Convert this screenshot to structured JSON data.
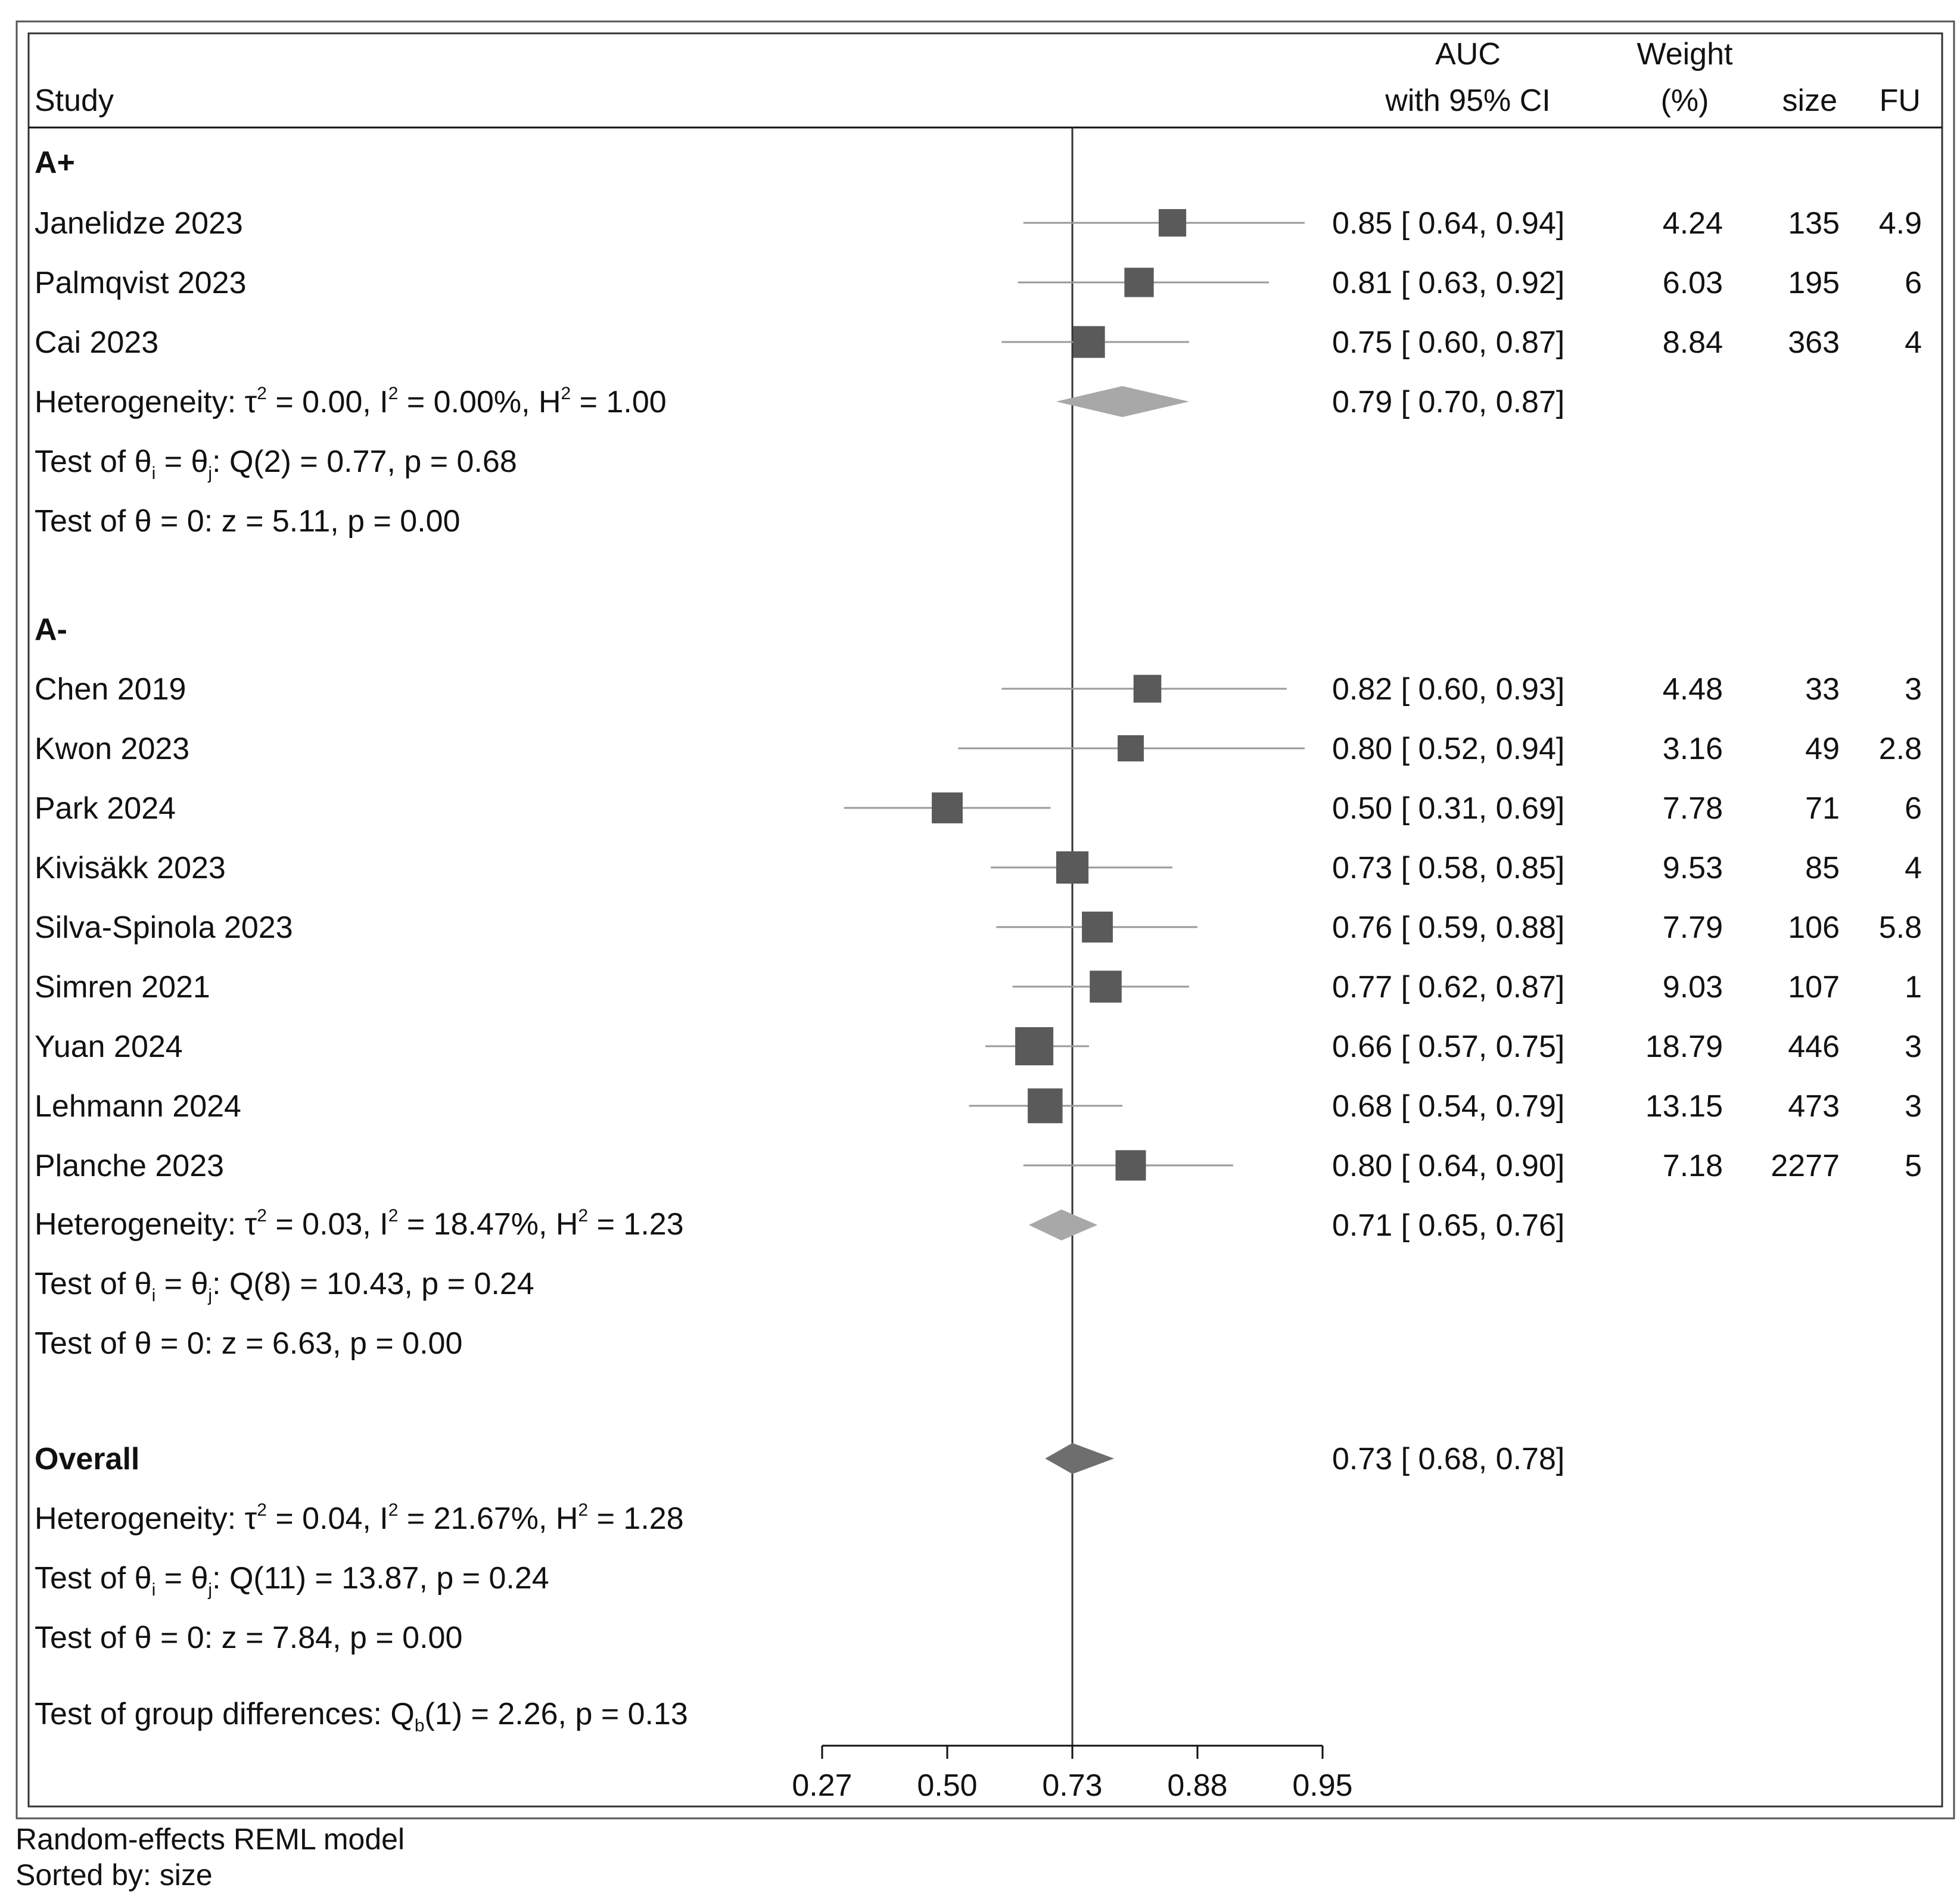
{
  "header": {
    "study": "Study",
    "auc_line1": "AUC",
    "auc_line2": "with 95% CI",
    "weight_line1": "Weight",
    "weight_line2": "(%)",
    "size": "size",
    "fu": "FU"
  },
  "chart_data": {
    "type": "forest",
    "x_ticks": [
      {
        "value": 0,
        "label": "0.27"
      },
      {
        "value": 1,
        "label": "0.50"
      },
      {
        "value": 2,
        "label": "0.73"
      },
      {
        "value": 3,
        "label": "0.88"
      },
      {
        "value": 4,
        "label": "0.95"
      }
    ],
    "x_range": [
      0,
      4
    ],
    "reference_value": 2,
    "colors": {
      "marker": "#5a5a5a",
      "ci_line": "#9a9a9a",
      "diamond": "#a8a8a8",
      "overall_diamond": "#6e6e6e"
    },
    "groups": [
      {
        "label": "A+",
        "studies": [
          {
            "name": "Janelidze 2023",
            "auc": 0.85,
            "lo": 0.64,
            "hi": 0.94,
            "ci_text": "0.85 [ 0.64,  0.94]",
            "weight": "4.24",
            "size": "135",
            "fu": "4.9"
          },
          {
            "name": "Palmqvist 2023",
            "auc": 0.81,
            "lo": 0.63,
            "hi": 0.92,
            "ci_text": "0.81 [ 0.63,  0.92]",
            "weight": "6.03",
            "size": "195",
            "fu": "6"
          },
          {
            "name": "Cai 2023",
            "auc": 0.75,
            "lo": 0.6,
            "hi": 0.87,
            "ci_text": "0.75 [ 0.60,  0.87]",
            "weight": "8.84",
            "size": "363",
            "fu": "4"
          }
        ],
        "summary": {
          "auc": 0.79,
          "lo": 0.7,
          "hi": 0.87,
          "ci_text": "0.79 [ 0.70,  0.87]"
        },
        "heterogeneity": {
          "prefix": "Heterogeneity: τ",
          "tau2": " = 0.00, I",
          "i2": " = 0.00%, H",
          "h2": " = 1.00"
        },
        "test_q": {
          "prefix": "Test of θ",
          "sub_i": "i",
          "mid": " = θ",
          "sub_j": "j",
          "suffix": ": Q(2) = 0.77, p = 0.68"
        },
        "test_z": "Test of θ = 0: z = 5.11, p = 0.00"
      },
      {
        "label": "A-",
        "studies": [
          {
            "name": "Chen 2019",
            "auc": 0.82,
            "lo": 0.6,
            "hi": 0.93,
            "ci_text": "0.82 [ 0.60,  0.93]",
            "weight": "4.48",
            "size": "33",
            "fu": "3"
          },
          {
            "name": "Kwon 2023",
            "auc": 0.8,
            "lo": 0.52,
            "hi": 0.94,
            "ci_text": "0.80 [ 0.52,  0.94]",
            "weight": "3.16",
            "size": "49",
            "fu": "2.8"
          },
          {
            "name": "Park 2024",
            "auc": 0.5,
            "lo": 0.31,
            "hi": 0.69,
            "ci_text": "0.50 [ 0.31,  0.69]",
            "weight": "7.78",
            "size": "71",
            "fu": "6"
          },
          {
            "name": "Kivisäkk 2023",
            "auc": 0.73,
            "lo": 0.58,
            "hi": 0.85,
            "ci_text": "0.73 [ 0.58,  0.85]",
            "weight": "9.53",
            "size": "85",
            "fu": "4"
          },
          {
            "name": "Silva-Spinola 2023",
            "auc": 0.76,
            "lo": 0.59,
            "hi": 0.88,
            "ci_text": "0.76 [ 0.59,  0.88]",
            "weight": "7.79",
            "size": "106",
            "fu": "5.8"
          },
          {
            "name": "Simren 2021",
            "auc": 0.77,
            "lo": 0.62,
            "hi": 0.87,
            "ci_text": "0.77 [ 0.62,  0.87]",
            "weight": "9.03",
            "size": "107",
            "fu": "1"
          },
          {
            "name": "Yuan 2024",
            "auc": 0.66,
            "lo": 0.57,
            "hi": 0.75,
            "ci_text": "0.66 [ 0.57,  0.75]",
            "weight": "18.79",
            "size": "446",
            "fu": "3"
          },
          {
            "name": "Lehmann 2024",
            "auc": 0.68,
            "lo": 0.54,
            "hi": 0.79,
            "ci_text": "0.68 [ 0.54,  0.79]",
            "weight": "13.15",
            "size": "473",
            "fu": "3"
          },
          {
            "name": "Planche 2023",
            "auc": 0.8,
            "lo": 0.64,
            "hi": 0.9,
            "ci_text": "0.80 [ 0.64,  0.90]",
            "weight": "7.18",
            "size": "2277",
            "fu": "5"
          }
        ],
        "summary": {
          "auc": 0.71,
          "lo": 0.65,
          "hi": 0.76,
          "ci_text": "0.71 [ 0.65,  0.76]"
        },
        "heterogeneity": {
          "prefix": "Heterogeneity: τ",
          "tau2": " = 0.03, I",
          "i2": " = 18.47%, H",
          "h2": " = 1.23"
        },
        "test_q": {
          "prefix": "Test of θ",
          "sub_i": "i",
          "mid": " = θ",
          "sub_j": "j",
          "suffix": ": Q(8) = 10.43, p = 0.24"
        },
        "test_z": "Test of θ = 0: z = 6.63, p = 0.00"
      }
    ],
    "overall": {
      "label": "Overall",
      "summary": {
        "auc": 0.73,
        "lo": 0.68,
        "hi": 0.78,
        "ci_text": "0.73 [ 0.68,  0.78]"
      },
      "heterogeneity": {
        "prefix": "Heterogeneity: τ",
        "tau2": " = 0.04, I",
        "i2": " = 21.67%, H",
        "h2": " = 1.28"
      },
      "test_q": {
        "prefix": "Test of θ",
        "sub_i": "i",
        "mid": " = θ",
        "sub_j": "j",
        "suffix": ": Q(11) = 13.87, p = 0.24"
      },
      "test_z": "Test of θ = 0: z = 7.84, p = 0.00",
      "group_diff": {
        "prefix": "Test of group differences: Q",
        "sub": "b",
        "suffix": "(1) = 2.26, p = 0.13"
      }
    }
  },
  "footer": {
    "model": "Random-effects REML model",
    "sorted": "Sorted by: size"
  }
}
